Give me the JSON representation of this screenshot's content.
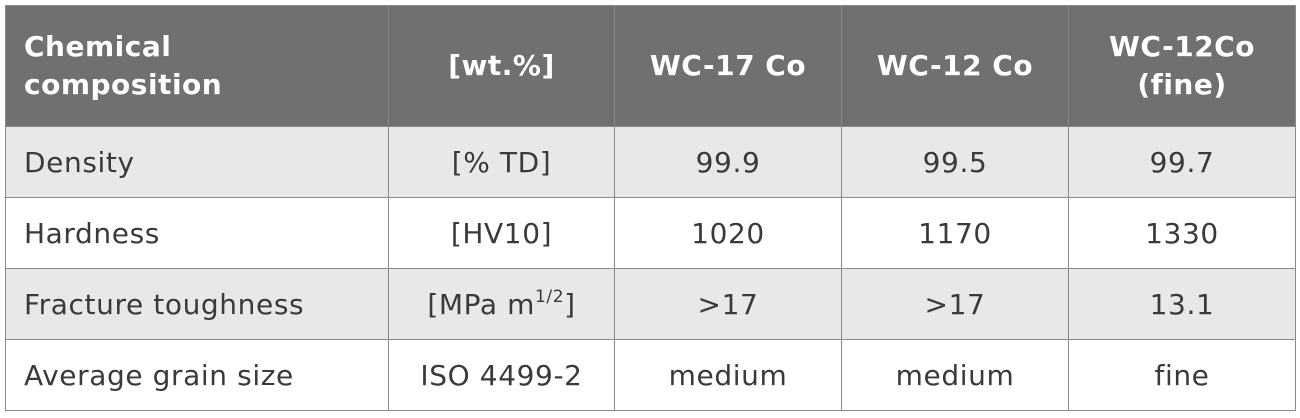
{
  "table": {
    "header": [
      "Chemical composition",
      "[wt.%]",
      "WC-17 Co",
      "WC-12 Co",
      "WC-12Co (fine)"
    ],
    "rows": [
      [
        "Density",
        "[% TD]",
        "99.9",
        "99.5",
        "99.7"
      ],
      [
        "Hardness",
        "[HV10]",
        "1020",
        "1170",
        "1330"
      ],
      [
        "Fracture toughness",
        {
          "text": "[MPa m",
          "superscript": "1/2",
          "suffix": "]"
        },
        ">17",
        ">17",
        "13.1"
      ],
      [
        "Average grain size",
        "ISO 4499-2",
        "medium",
        "medium",
        "fine"
      ]
    ]
  }
}
